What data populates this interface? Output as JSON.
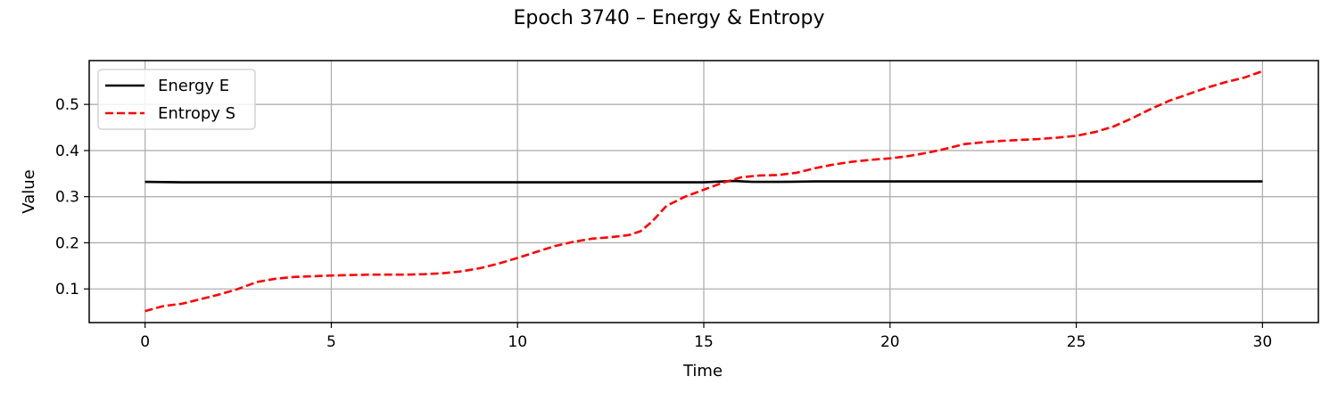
{
  "chart_data": {
    "type": "line",
    "title": "Epoch 3740 – Energy & Entropy",
    "xlabel": "Time",
    "ylabel": "Value",
    "xlim": [
      -1.5,
      31.5
    ],
    "ylim": [
      0.027,
      0.595
    ],
    "xticks": [
      0,
      5,
      10,
      15,
      20,
      25,
      30
    ],
    "yticks": [
      0.1,
      0.2,
      0.3,
      0.4,
      0.5
    ],
    "xtick_labels": [
      "0",
      "5",
      "10",
      "15",
      "20",
      "25",
      "30"
    ],
    "ytick_labels": [
      "0.1",
      "0.2",
      "0.3",
      "0.4",
      "0.5"
    ],
    "grid": true,
    "legend_position": "upper-left",
    "series": [
      {
        "name": "Energy E",
        "color": "#000000",
        "style": "solid",
        "x": [
          0,
          1,
          2,
          3,
          4,
          5,
          6,
          7,
          8,
          9,
          10,
          11,
          12,
          13,
          14,
          15,
          15.8,
          16.3,
          17,
          18,
          19,
          20,
          21,
          22,
          23,
          24,
          25,
          26,
          27,
          28,
          29,
          30
        ],
        "y": [
          0.332,
          0.331,
          0.331,
          0.331,
          0.331,
          0.331,
          0.331,
          0.331,
          0.331,
          0.331,
          0.331,
          0.331,
          0.331,
          0.331,
          0.331,
          0.331,
          0.334,
          0.332,
          0.332,
          0.333,
          0.333,
          0.333,
          0.333,
          0.333,
          0.333,
          0.333,
          0.333,
          0.333,
          0.333,
          0.333,
          0.333,
          0.333
        ]
      },
      {
        "name": "Entropy S",
        "color": "#ff0000",
        "style": "dashed",
        "x": [
          0,
          0.5,
          1,
          1.5,
          2,
          2.5,
          3,
          3.5,
          4,
          5,
          6,
          7,
          7.5,
          8,
          8.5,
          9,
          9.5,
          10,
          10.5,
          11,
          11.5,
          12,
          12.5,
          13,
          13.3,
          13.6,
          14,
          14.5,
          15,
          15.5,
          16,
          16.5,
          17,
          17.5,
          18,
          18.5,
          19,
          19.5,
          20,
          20.5,
          21,
          21.5,
          22,
          22.5,
          23,
          23.5,
          24,
          24.5,
          25,
          25.5,
          26,
          26.5,
          27,
          27.5,
          28,
          28.5,
          29,
          29.5,
          30
        ],
        "y": [
          0.052,
          0.063,
          0.068,
          0.078,
          0.088,
          0.1,
          0.115,
          0.122,
          0.126,
          0.129,
          0.131,
          0.131,
          0.132,
          0.134,
          0.138,
          0.145,
          0.155,
          0.167,
          0.18,
          0.193,
          0.202,
          0.209,
          0.212,
          0.217,
          0.225,
          0.245,
          0.28,
          0.3,
          0.315,
          0.33,
          0.342,
          0.346,
          0.347,
          0.352,
          0.362,
          0.37,
          0.376,
          0.38,
          0.383,
          0.388,
          0.395,
          0.404,
          0.414,
          0.418,
          0.421,
          0.423,
          0.425,
          0.428,
          0.432,
          0.44,
          0.452,
          0.47,
          0.49,
          0.508,
          0.522,
          0.536,
          0.548,
          0.558,
          0.572
        ]
      }
    ]
  }
}
